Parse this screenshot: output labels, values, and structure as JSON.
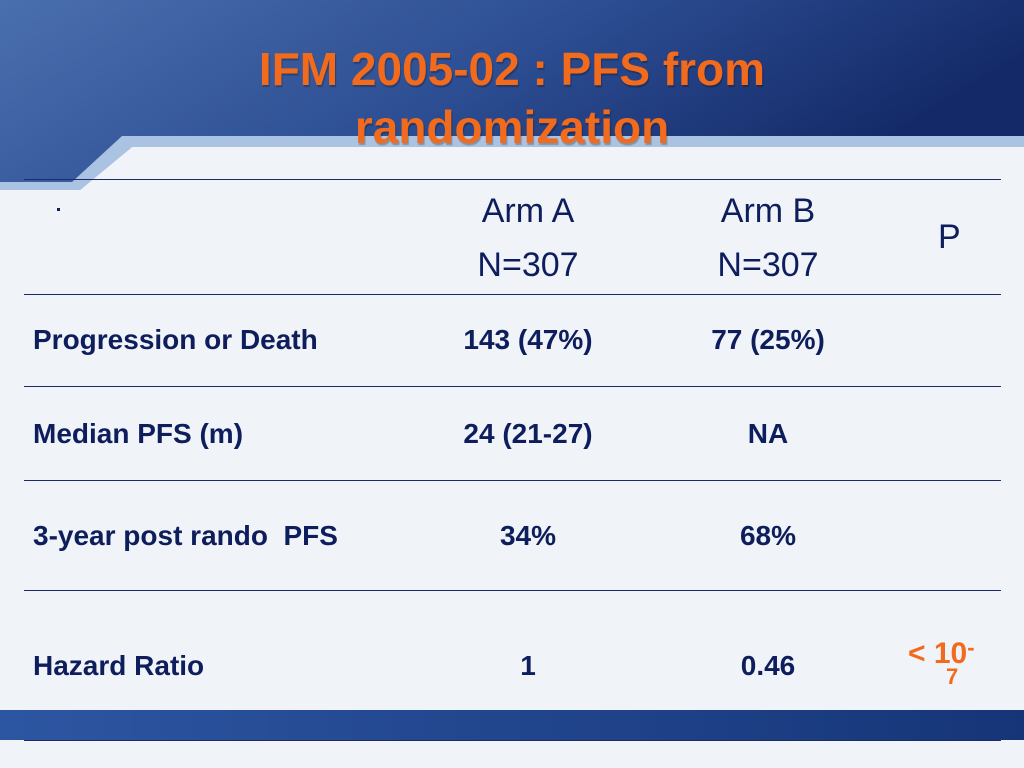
{
  "title": {
    "line1": "IFM 2005-02 : PFS from",
    "line2": "randomization"
  },
  "colors": {
    "title": "#f26a1b",
    "text": "#0e1e5c",
    "background_top": "#1b3a78",
    "background_bottom": "#1b3e86",
    "panel": "#f0f3f8",
    "accent_light": "#aac3e2"
  },
  "table": {
    "header": {
      "bullet": "·",
      "arm_a_name": "Arm A",
      "arm_a_n": "N=307",
      "arm_b_name": "Arm B",
      "arm_b_n": "N=307",
      "p": "P"
    },
    "rows": [
      {
        "label": "Progression or Death",
        "arm_a": "143 (47%)",
        "arm_b": "77 (25%)"
      },
      {
        "label": "Median PFS (m)",
        "arm_a": "24 (21-27)",
        "arm_b": "NA"
      },
      {
        "label": "3-year post rando  PFS",
        "arm_a": "34%",
        "arm_b": "68%"
      },
      {
        "label": "Hazard Ratio",
        "arm_a": "1",
        "arm_b": "0.46"
      }
    ],
    "p_value": {
      "prefix": "< 10",
      "exponent_sign": "-",
      "exponent_digit": "7"
    }
  }
}
